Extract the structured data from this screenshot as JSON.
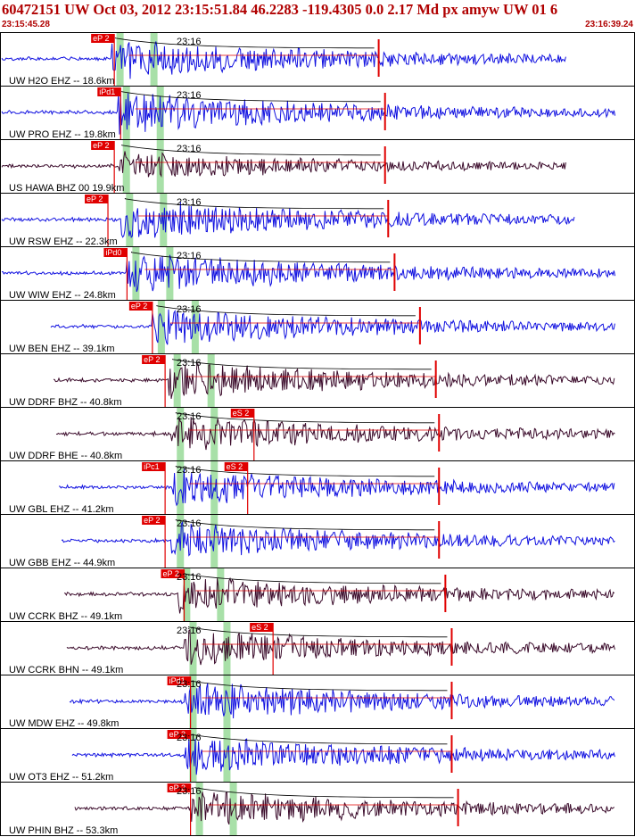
{
  "header": {
    "title": "60472151 UW Oct 03, 2012 23:15:51.84   46.2283 -119.4305  0.0 2.17 Md px amyw UW 01   6",
    "start_time": "23:15:45.28",
    "end_time": "23:16:39.24"
  },
  "colors": {
    "blue_trace": "#1010e0",
    "dark_trace": "#3a0a2a",
    "pick": "#e00000",
    "green_band": "#a8e0a8"
  },
  "minute_label": "23:16",
  "traces": [
    {
      "label": "UW H2O EHZ -- 18.6km",
      "color": "blue",
      "picks": [
        {
          "text": "eP 2",
          "pos": 0.18
        }
      ],
      "p": 0.175,
      "amp": 0.9
    },
    {
      "label": "UW PRO EHZ -- 19.8km",
      "color": "blue",
      "picks": [
        {
          "text": "iPd1",
          "pos": 0.19
        }
      ],
      "p": 0.185,
      "amp": 0.9
    },
    {
      "label": "US HAWA BHZ 00 19.9km",
      "color": "dark",
      "picks": [
        {
          "text": "eP 2",
          "pos": 0.18
        }
      ],
      "p": 0.185,
      "amp": 0.6
    },
    {
      "label": "UW RSW EHZ -- 22.3km",
      "color": "blue",
      "picks": [
        {
          "text": "eP 2",
          "pos": 0.17
        }
      ],
      "p": 0.19,
      "amp": 0.9
    },
    {
      "label": "UW WIW EHZ -- 24.8km",
      "color": "blue",
      "picks": [
        {
          "text": "iPd0",
          "pos": 0.2
        }
      ],
      "p": 0.2,
      "amp": 0.9
    },
    {
      "label": "UW BEN EHZ -- 39.1km",
      "color": "blue",
      "picks": [
        {
          "text": "eP 2",
          "pos": 0.24
        }
      ],
      "p": 0.24,
      "amp": 0.8
    },
    {
      "label": "UW DDRF BHZ -- 40.8km",
      "color": "dark",
      "picks": [
        {
          "text": "eP 2",
          "pos": 0.26
        }
      ],
      "p": 0.265,
      "amp": 0.8
    },
    {
      "label": "UW DDRF BHE -- 40.8km",
      "color": "dark",
      "picks": [
        {
          "text": "eS 2",
          "pos": 0.4
        }
      ],
      "p": 0.27,
      "amp": 0.8
    },
    {
      "label": "UW GBL EHZ -- 41.2km",
      "color": "blue",
      "picks": [
        {
          "text": "iPc1",
          "pos": 0.26
        },
        {
          "text": "eS 2",
          "pos": 0.39
        }
      ],
      "p": 0.27,
      "amp": 0.8
    },
    {
      "label": "UW GBB EHZ -- 44.9km",
      "color": "blue",
      "picks": [
        {
          "text": "eP 2",
          "pos": 0.26
        }
      ],
      "p": 0.27,
      "amp": 0.8
    },
    {
      "label": "UW CCRK BHZ -- 49.1km",
      "color": "dark",
      "picks": [
        {
          "text": "eP 2",
          "pos": 0.29
        }
      ],
      "p": 0.28,
      "amp": 0.8
    },
    {
      "label": "UW CCRK BHN -- 49.1km",
      "color": "dark",
      "picks": [
        {
          "text": "eS 2",
          "pos": 0.43
        }
      ],
      "p": 0.29,
      "amp": 0.8
    },
    {
      "label": "UW MDW EHZ -- 49.8km",
      "color": "blue",
      "picks": [
        {
          "text": "iPd1",
          "pos": 0.3
        }
      ],
      "p": 0.29,
      "amp": 0.85
    },
    {
      "label": "UW OT3 EHZ -- 51.2km",
      "color": "blue",
      "picks": [
        {
          "text": "eP 2",
          "pos": 0.3
        }
      ],
      "p": 0.29,
      "amp": 0.85
    },
    {
      "label": "UW PHIN BHZ -- 53.3km",
      "color": "dark",
      "picks": [
        {
          "text": "eP 2",
          "pos": 0.3
        }
      ],
      "p": 0.3,
      "amp": 0.8
    }
  ]
}
